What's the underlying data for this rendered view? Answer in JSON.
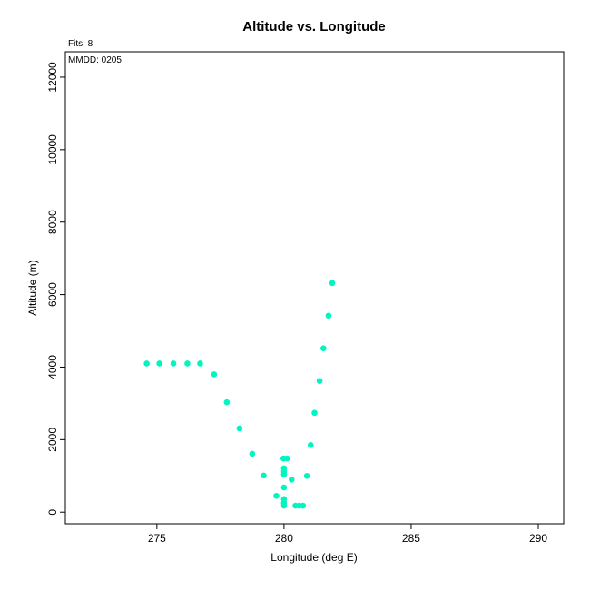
{
  "chart_data": {
    "type": "scatter",
    "title": "Altitude vs. Longitude",
    "annotations": {
      "fits": "Fits: 8",
      "mmdd": "MMDD: 0205"
    },
    "xlabel": "Longitude (deg E)",
    "ylabel": "Altitude (m)",
    "xlim": [
      271.4,
      291.0
    ],
    "ylim": [
      -320,
      12700
    ],
    "xticks": [
      275,
      280,
      285,
      290
    ],
    "yticks": [
      0,
      2000,
      4000,
      6000,
      8000,
      10000,
      12000
    ],
    "grid": false,
    "color": "#00f5c0",
    "points": [
      {
        "x": 274.6,
        "y": 4100
      },
      {
        "x": 275.1,
        "y": 4100
      },
      {
        "x": 275.65,
        "y": 4100
      },
      {
        "x": 276.2,
        "y": 4100
      },
      {
        "x": 276.7,
        "y": 4100
      },
      {
        "x": 277.25,
        "y": 3800
      },
      {
        "x": 277.75,
        "y": 3030
      },
      {
        "x": 278.25,
        "y": 2310
      },
      {
        "x": 278.75,
        "y": 1610
      },
      {
        "x": 279.2,
        "y": 1010
      },
      {
        "x": 279.7,
        "y": 450
      },
      {
        "x": 279.98,
        "y": 1480
      },
      {
        "x": 280.12,
        "y": 1480
      },
      {
        "x": 280.0,
        "y": 1210
      },
      {
        "x": 280.0,
        "y": 1120
      },
      {
        "x": 280.0,
        "y": 1040
      },
      {
        "x": 280.0,
        "y": 680
      },
      {
        "x": 280.0,
        "y": 360
      },
      {
        "x": 280.0,
        "y": 260
      },
      {
        "x": 280.0,
        "y": 180
      },
      {
        "x": 280.3,
        "y": 900
      },
      {
        "x": 280.45,
        "y": 180
      },
      {
        "x": 280.6,
        "y": 180
      },
      {
        "x": 280.75,
        "y": 180
      },
      {
        "x": 280.9,
        "y": 1000
      },
      {
        "x": 281.05,
        "y": 1850
      },
      {
        "x": 281.2,
        "y": 2740
      },
      {
        "x": 281.4,
        "y": 3620
      },
      {
        "x": 281.55,
        "y": 4520
      },
      {
        "x": 281.75,
        "y": 5420
      },
      {
        "x": 281.9,
        "y": 6320
      }
    ]
  }
}
